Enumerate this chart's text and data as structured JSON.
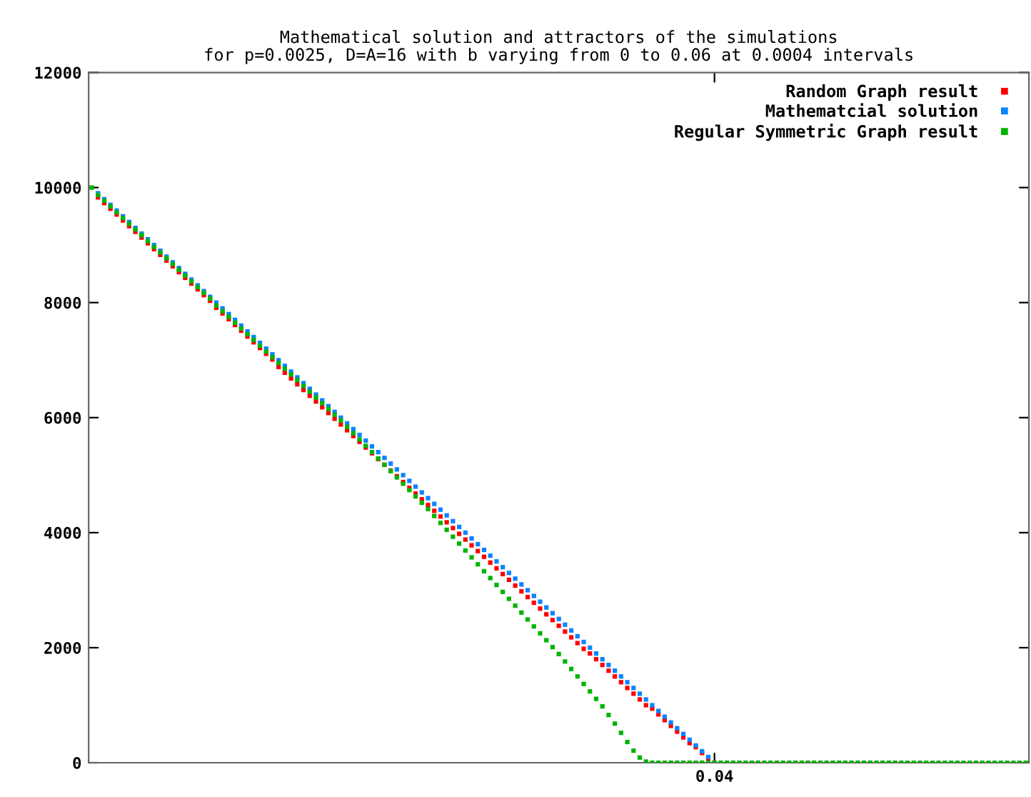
{
  "chart_data": {
    "type": "scatter",
    "title": "Mathematical solution and attractors of the simulations\nfor p=0.0025, D=A=16 with b varying from 0 to 0.06 at 0.0004 intervals",
    "categories": [
      null,
      null,
      null,
      null,
      null,
      null,
      null,
      null,
      null,
      null,
      null,
      null,
      null,
      null,
      null,
      null,
      null,
      null,
      null,
      null,
      null,
      null,
      null,
      null,
      null,
      null,
      null,
      null,
      null,
      null,
      null,
      null,
      null,
      null,
      null,
      null,
      null,
      null,
      null,
      null,
      null,
      null,
      null,
      null,
      null,
      null,
      null,
      null,
      null,
      null,
      null,
      null,
      null,
      null,
      null,
      null,
      null,
      null,
      null,
      null,
      null,
      null,
      null,
      null,
      null,
      null,
      null,
      null,
      null,
      null,
      null,
      null,
      null,
      null,
      null,
      null,
      null,
      null,
      null,
      null,
      null,
      null,
      null,
      null,
      null,
      null,
      null,
      null,
      null,
      null,
      null,
      null,
      null,
      null,
      null,
      null,
      null,
      null,
      null,
      null,
      "0.04",
      null,
      null,
      null,
      null,
      null,
      null,
      null,
      null,
      null,
      null,
      null,
      null,
      null,
      null,
      null,
      null,
      null,
      null,
      null,
      null,
      null,
      null,
      null,
      null,
      null,
      null,
      null,
      null,
      null,
      null,
      null,
      null,
      null,
      null,
      null,
      null,
      null,
      null,
      null,
      null,
      null,
      null,
      null,
      null,
      null,
      null,
      null,
      null,
      null,
      null
    ],
    "series": [
      {
        "name": "Random Graph result",
        "color": "#ff0000",
        "values": [
          null,
          9830,
          9730,
          9630,
          9530,
          9430,
          9330,
          9230,
          9130,
          9030,
          8930,
          8830,
          8730,
          8630,
          8530,
          8430,
          8330,
          8230,
          8130,
          8030,
          7910,
          7810,
          7710,
          7610,
          7510,
          7410,
          7310,
          7210,
          7110,
          7010,
          6880,
          6780,
          6680,
          6580,
          6480,
          6380,
          6280,
          6180,
          6080,
          5980,
          5880,
          5780,
          5680,
          5580,
          5480,
          5380,
          5280,
          5180,
          5080,
          4980,
          4880,
          4780,
          4680,
          4580,
          4480,
          4380,
          4280,
          4180,
          4080,
          3980,
          3880,
          3780,
          3680,
          3580,
          3480,
          3380,
          3280,
          3180,
          3080,
          2980,
          2880,
          2780,
          2680,
          2580,
          2480,
          2380,
          2280,
          2180,
          2080,
          1980,
          1900,
          1800,
          1700,
          1600,
          1500,
          1400,
          1300,
          1200,
          1100,
          1000,
          940,
          840,
          740,
          640,
          540,
          440,
          340,
          270,
          170,
          70,
          0,
          null,
          null,
          null,
          null,
          null,
          null,
          null,
          null,
          null,
          null,
          null,
          null,
          null,
          null,
          null,
          null,
          null,
          null,
          null,
          null,
          null,
          null,
          null,
          null,
          null,
          null,
          null,
          null,
          null,
          null,
          null,
          null,
          null,
          null,
          null,
          null,
          null,
          null,
          null,
          null,
          null,
          null,
          null,
          null,
          null,
          null,
          null,
          null,
          null,
          null
        ]
      },
      {
        "name": "Mathematcial solution",
        "color": "#0a84ff",
        "values": [
          null,
          9900,
          9800,
          9700,
          9600,
          9500,
          9400,
          9300,
          9200,
          9100,
          9000,
          8900,
          8800,
          8700,
          8600,
          8500,
          8400,
          8300,
          8200,
          8100,
          8000,
          7900,
          7800,
          7700,
          7600,
          7500,
          7400,
          7300,
          7200,
          7100,
          7000,
          6900,
          6800,
          6700,
          6600,
          6500,
          6400,
          6300,
          6200,
          6100,
          6000,
          5900,
          5800,
          5700,
          5600,
          5500,
          5400,
          5300,
          5200,
          5100,
          5000,
          4900,
          4800,
          4700,
          4600,
          4500,
          4400,
          4300,
          4200,
          4100,
          4000,
          3900,
          3800,
          3700,
          3600,
          3500,
          3400,
          3300,
          3200,
          3100,
          3000,
          2900,
          2800,
          2700,
          2600,
          2500,
          2400,
          2300,
          2200,
          2100,
          2000,
          1900,
          1800,
          1700,
          1600,
          1500,
          1400,
          1300,
          1200,
          1100,
          1000,
          900,
          800,
          700,
          600,
          500,
          400,
          300,
          200,
          100,
          0,
          null,
          null,
          null,
          null,
          null,
          null,
          null,
          null,
          null,
          null,
          null,
          null,
          null,
          null,
          null,
          null,
          null,
          null,
          null,
          null,
          null,
          null,
          null,
          null,
          null,
          null,
          null,
          null,
          null,
          null,
          null,
          null,
          null,
          null,
          null,
          null,
          null,
          null,
          null,
          null,
          null,
          null,
          null,
          null,
          null,
          null,
          null,
          null,
          null,
          null
        ]
      },
      {
        "name": "Regular Symmetric Graph result",
        "color": "#00b400",
        "values": [
          10000,
          9870,
          9770,
          9670,
          9570,
          9470,
          9370,
          9270,
          9170,
          9070,
          8970,
          8870,
          8770,
          8670,
          8570,
          8470,
          8370,
          8270,
          8170,
          8070,
          7950,
          7850,
          7750,
          7650,
          7550,
          7450,
          7350,
          7250,
          7150,
          7050,
          6950,
          6850,
          6750,
          6650,
          6550,
          6450,
          6350,
          6250,
          6150,
          6050,
          5950,
          5840,
          5730,
          5620,
          5510,
          5400,
          5290,
          5180,
          5070,
          4960,
          4850,
          4740,
          4630,
          4520,
          4410,
          4290,
          4170,
          4050,
          3930,
          3810,
          3690,
          3570,
          3450,
          3330,
          3210,
          3090,
          2970,
          2850,
          2730,
          2610,
          2490,
          2370,
          2250,
          2130,
          2010,
          1890,
          1760,
          1630,
          1500,
          1370,
          1240,
          1110,
          980,
          830,
          680,
          520,
          360,
          210,
          90,
          20,
          0,
          0,
          0,
          0,
          0,
          0,
          0,
          0,
          0,
          0,
          0,
          0,
          0,
          0,
          0,
          0,
          0,
          0,
          0,
          0,
          0,
          0,
          0,
          0,
          0,
          0,
          0,
          0,
          0,
          0,
          0,
          0,
          0,
          0,
          0,
          0,
          0,
          0,
          0,
          0,
          0,
          0,
          0,
          0,
          0,
          0,
          0,
          0,
          0,
          0,
          0,
          0,
          0,
          0,
          0,
          0,
          0,
          0,
          0,
          0,
          0
        ]
      }
    ],
    "ylim": [
      0,
      12000
    ],
    "yticks": [
      0,
      2000,
      4000,
      6000,
      8000,
      10000,
      12000
    ],
    "marker": "square",
    "grid": false,
    "legend": "top right"
  }
}
